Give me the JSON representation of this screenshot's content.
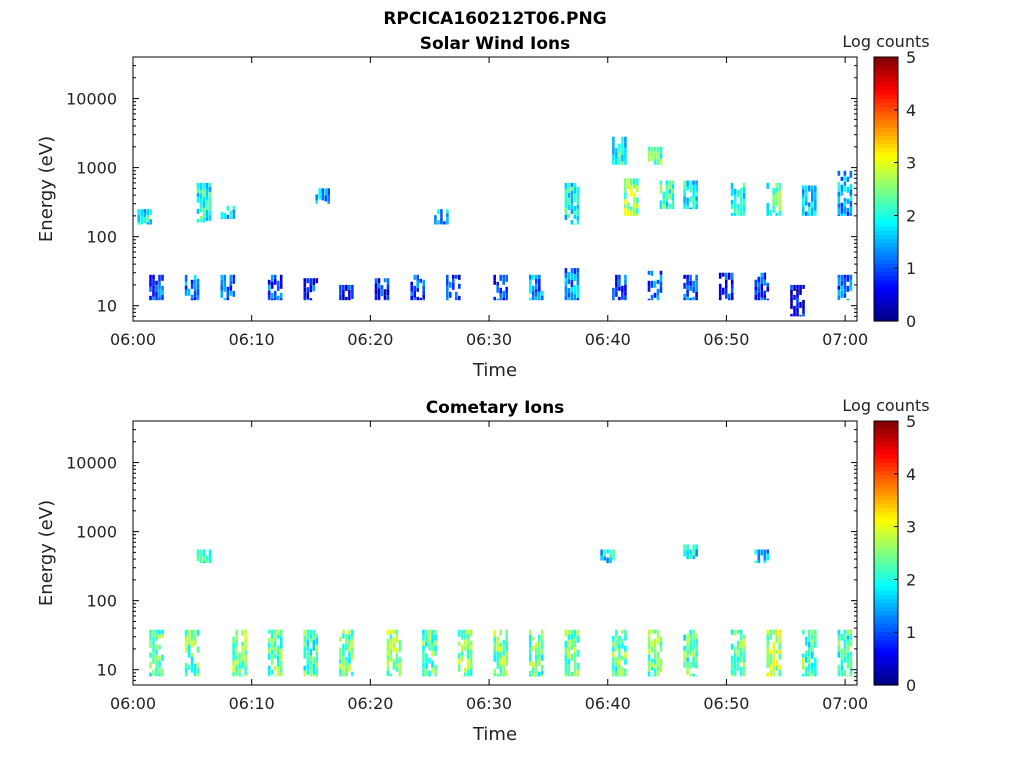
{
  "figure_title": "RPCICA160212T06.PNG",
  "chart_data": [
    {
      "type": "heatmap",
      "title": "Solar Wind Ions",
      "xlabel": "Time",
      "ylabel": "Energy (eV)",
      "y_scale": "log",
      "xlim": [
        "06:00",
        "07:01"
      ],
      "ylim": [
        6,
        40000
      ],
      "x_ticks": [
        "06:00",
        "06:10",
        "06:20",
        "06:30",
        "06:40",
        "06:50",
        "07:00"
      ],
      "y_ticks": [
        "10",
        "100",
        "1000",
        "10000"
      ],
      "colorbar": {
        "label": "Log counts",
        "ticks": [
          "0",
          "1",
          "2",
          "3",
          "4",
          "5"
        ],
        "range": [
          0,
          5
        ],
        "colormap": "jet"
      },
      "grid": false,
      "features": [
        {
          "time": "06:02",
          "e_min": 12,
          "e_max": 28,
          "level": 1.1
        },
        {
          "time": "06:05",
          "e_min": 12,
          "e_max": 28,
          "level": 1.3
        },
        {
          "time": "06:08",
          "e_min": 12,
          "e_max": 28,
          "level": 1.2
        },
        {
          "time": "06:12",
          "e_min": 12,
          "e_max": 28,
          "level": 1.0
        },
        {
          "time": "06:15",
          "e_min": 12,
          "e_max": 25,
          "level": 0.9
        },
        {
          "time": "06:18",
          "e_min": 12,
          "e_max": 20,
          "level": 0.7
        },
        {
          "time": "06:21",
          "e_min": 12,
          "e_max": 25,
          "level": 0.8
        },
        {
          "time": "06:24",
          "e_min": 12,
          "e_max": 28,
          "level": 1.0
        },
        {
          "time": "06:27",
          "e_min": 12,
          "e_max": 28,
          "level": 0.9
        },
        {
          "time": "06:31",
          "e_min": 12,
          "e_max": 28,
          "level": 1.0
        },
        {
          "time": "06:34",
          "e_min": 12,
          "e_max": 28,
          "level": 1.4
        },
        {
          "time": "06:37",
          "e_min": 12,
          "e_max": 35,
          "level": 1.3
        },
        {
          "time": "06:41",
          "e_min": 12,
          "e_max": 28,
          "level": 1.0
        },
        {
          "time": "06:44",
          "e_min": 12,
          "e_max": 32,
          "level": 1.1
        },
        {
          "time": "06:47",
          "e_min": 12,
          "e_max": 28,
          "level": 1.0
        },
        {
          "time": "06:50",
          "e_min": 12,
          "e_max": 30,
          "level": 0.8
        },
        {
          "time": "06:53",
          "e_min": 12,
          "e_max": 30,
          "level": 1.0
        },
        {
          "time": "06:56",
          "e_min": 7,
          "e_max": 20,
          "level": 0.6
        },
        {
          "time": "07:00",
          "e_min": 12,
          "e_max": 28,
          "level": 1.2
        },
        {
          "time": "06:01",
          "e_min": 150,
          "e_max": 250,
          "level": 1.8
        },
        {
          "time": "06:06",
          "e_min": 160,
          "e_max": 600,
          "level": 2.0
        },
        {
          "time": "06:08",
          "e_min": 180,
          "e_max": 280,
          "level": 1.7
        },
        {
          "time": "06:16",
          "e_min": 300,
          "e_max": 500,
          "level": 1.5
        },
        {
          "time": "06:26",
          "e_min": 150,
          "e_max": 250,
          "level": 1.6
        },
        {
          "time": "06:37",
          "e_min": 150,
          "e_max": 600,
          "level": 1.9
        },
        {
          "time": "06:41",
          "e_min": 1100,
          "e_max": 2800,
          "level": 2.0
        },
        {
          "time": "06:42",
          "e_min": 200,
          "e_max": 700,
          "level": 2.6
        },
        {
          "time": "06:44",
          "e_min": 1100,
          "e_max": 2000,
          "level": 2.4
        },
        {
          "time": "06:45",
          "e_min": 250,
          "e_max": 650,
          "level": 2.2
        },
        {
          "time": "06:47",
          "e_min": 250,
          "e_max": 650,
          "level": 1.9
        },
        {
          "time": "06:51",
          "e_min": 200,
          "e_max": 600,
          "level": 2.1
        },
        {
          "time": "06:54",
          "e_min": 200,
          "e_max": 600,
          "level": 2.3
        },
        {
          "time": "06:57",
          "e_min": 200,
          "e_max": 550,
          "level": 1.7
        },
        {
          "time": "07:00",
          "e_min": 200,
          "e_max": 900,
          "level": 1.5
        }
      ]
    },
    {
      "type": "heatmap",
      "title": "Cometary Ions",
      "xlabel": "Time",
      "ylabel": "Energy (eV)",
      "y_scale": "log",
      "xlim": [
        "06:00",
        "07:01"
      ],
      "ylim": [
        6,
        40000
      ],
      "x_ticks": [
        "06:00",
        "06:10",
        "06:20",
        "06:30",
        "06:40",
        "06:50",
        "07:00"
      ],
      "y_ticks": [
        "10",
        "100",
        "1000",
        "10000"
      ],
      "colorbar": {
        "label": "Log counts",
        "ticks": [
          "0",
          "1",
          "2",
          "3",
          "4",
          "5"
        ],
        "range": [
          0,
          5
        ],
        "colormap": "jet"
      },
      "grid": false,
      "features": [
        {
          "time": "06:02",
          "e_min": 8,
          "e_max": 38,
          "level": 2.3
        },
        {
          "time": "06:05",
          "e_min": 8,
          "e_max": 38,
          "level": 2.4
        },
        {
          "time": "06:09",
          "e_min": 8,
          "e_max": 38,
          "level": 2.5
        },
        {
          "time": "06:12",
          "e_min": 8,
          "e_max": 38,
          "level": 2.4
        },
        {
          "time": "06:15",
          "e_min": 8,
          "e_max": 38,
          "level": 2.3
        },
        {
          "time": "06:18",
          "e_min": 8,
          "e_max": 38,
          "level": 2.4
        },
        {
          "time": "06:22",
          "e_min": 8,
          "e_max": 38,
          "level": 2.6
        },
        {
          "time": "06:25",
          "e_min": 8,
          "e_max": 38,
          "level": 2.4
        },
        {
          "time": "06:28",
          "e_min": 8,
          "e_max": 38,
          "level": 2.5
        },
        {
          "time": "06:31",
          "e_min": 8,
          "e_max": 38,
          "level": 2.5
        },
        {
          "time": "06:34",
          "e_min": 8,
          "e_max": 38,
          "level": 2.4
        },
        {
          "time": "06:37",
          "e_min": 8,
          "e_max": 38,
          "level": 2.5
        },
        {
          "time": "06:41",
          "e_min": 8,
          "e_max": 38,
          "level": 2.4
        },
        {
          "time": "06:44",
          "e_min": 8,
          "e_max": 38,
          "level": 2.5
        },
        {
          "time": "06:47",
          "e_min": 8,
          "e_max": 38,
          "level": 2.3
        },
        {
          "time": "06:51",
          "e_min": 8,
          "e_max": 38,
          "level": 2.4
        },
        {
          "time": "06:54",
          "e_min": 8,
          "e_max": 38,
          "level": 2.8
        },
        {
          "time": "06:57",
          "e_min": 8,
          "e_max": 38,
          "level": 2.3
        },
        {
          "time": "07:00",
          "e_min": 8,
          "e_max": 38,
          "level": 2.2
        },
        {
          "time": "06:06",
          "e_min": 350,
          "e_max": 550,
          "level": 1.9
        },
        {
          "time": "06:40",
          "e_min": 350,
          "e_max": 550,
          "level": 1.8
        },
        {
          "time": "06:47",
          "e_min": 400,
          "e_max": 650,
          "level": 1.8
        },
        {
          "time": "06:53",
          "e_min": 350,
          "e_max": 550,
          "level": 1.7
        }
      ]
    }
  ]
}
